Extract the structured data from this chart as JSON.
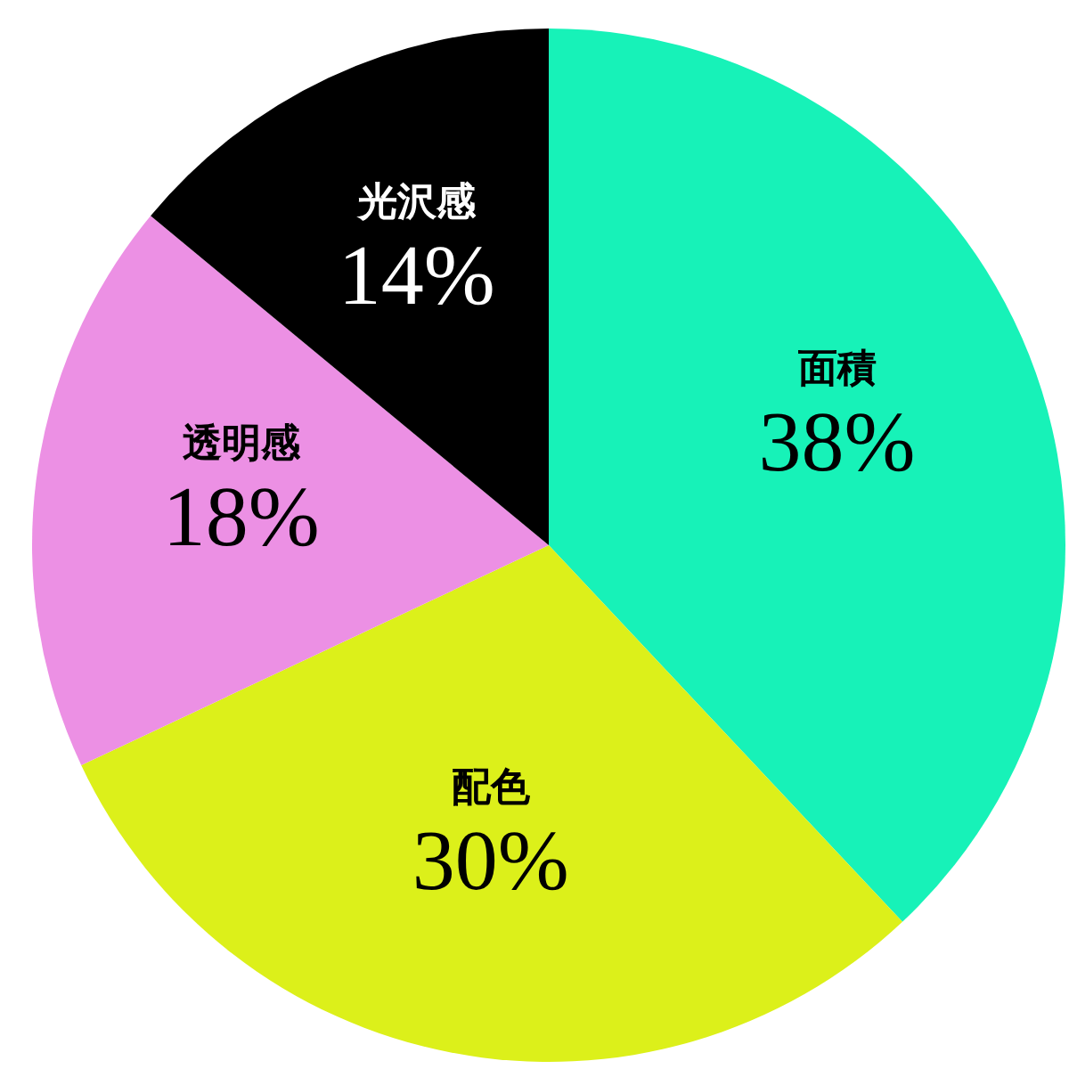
{
  "chart_data": {
    "type": "pie",
    "categories": [
      "面積",
      "配色",
      "透明感",
      "光沢感"
    ],
    "values": [
      38,
      30,
      18,
      14
    ],
    "colors": [
      "#17f2b8",
      "#dcf01a",
      "#ec90e4",
      "#000000"
    ],
    "value_labels": [
      "38%",
      "30%",
      "18%",
      "14%"
    ]
  }
}
